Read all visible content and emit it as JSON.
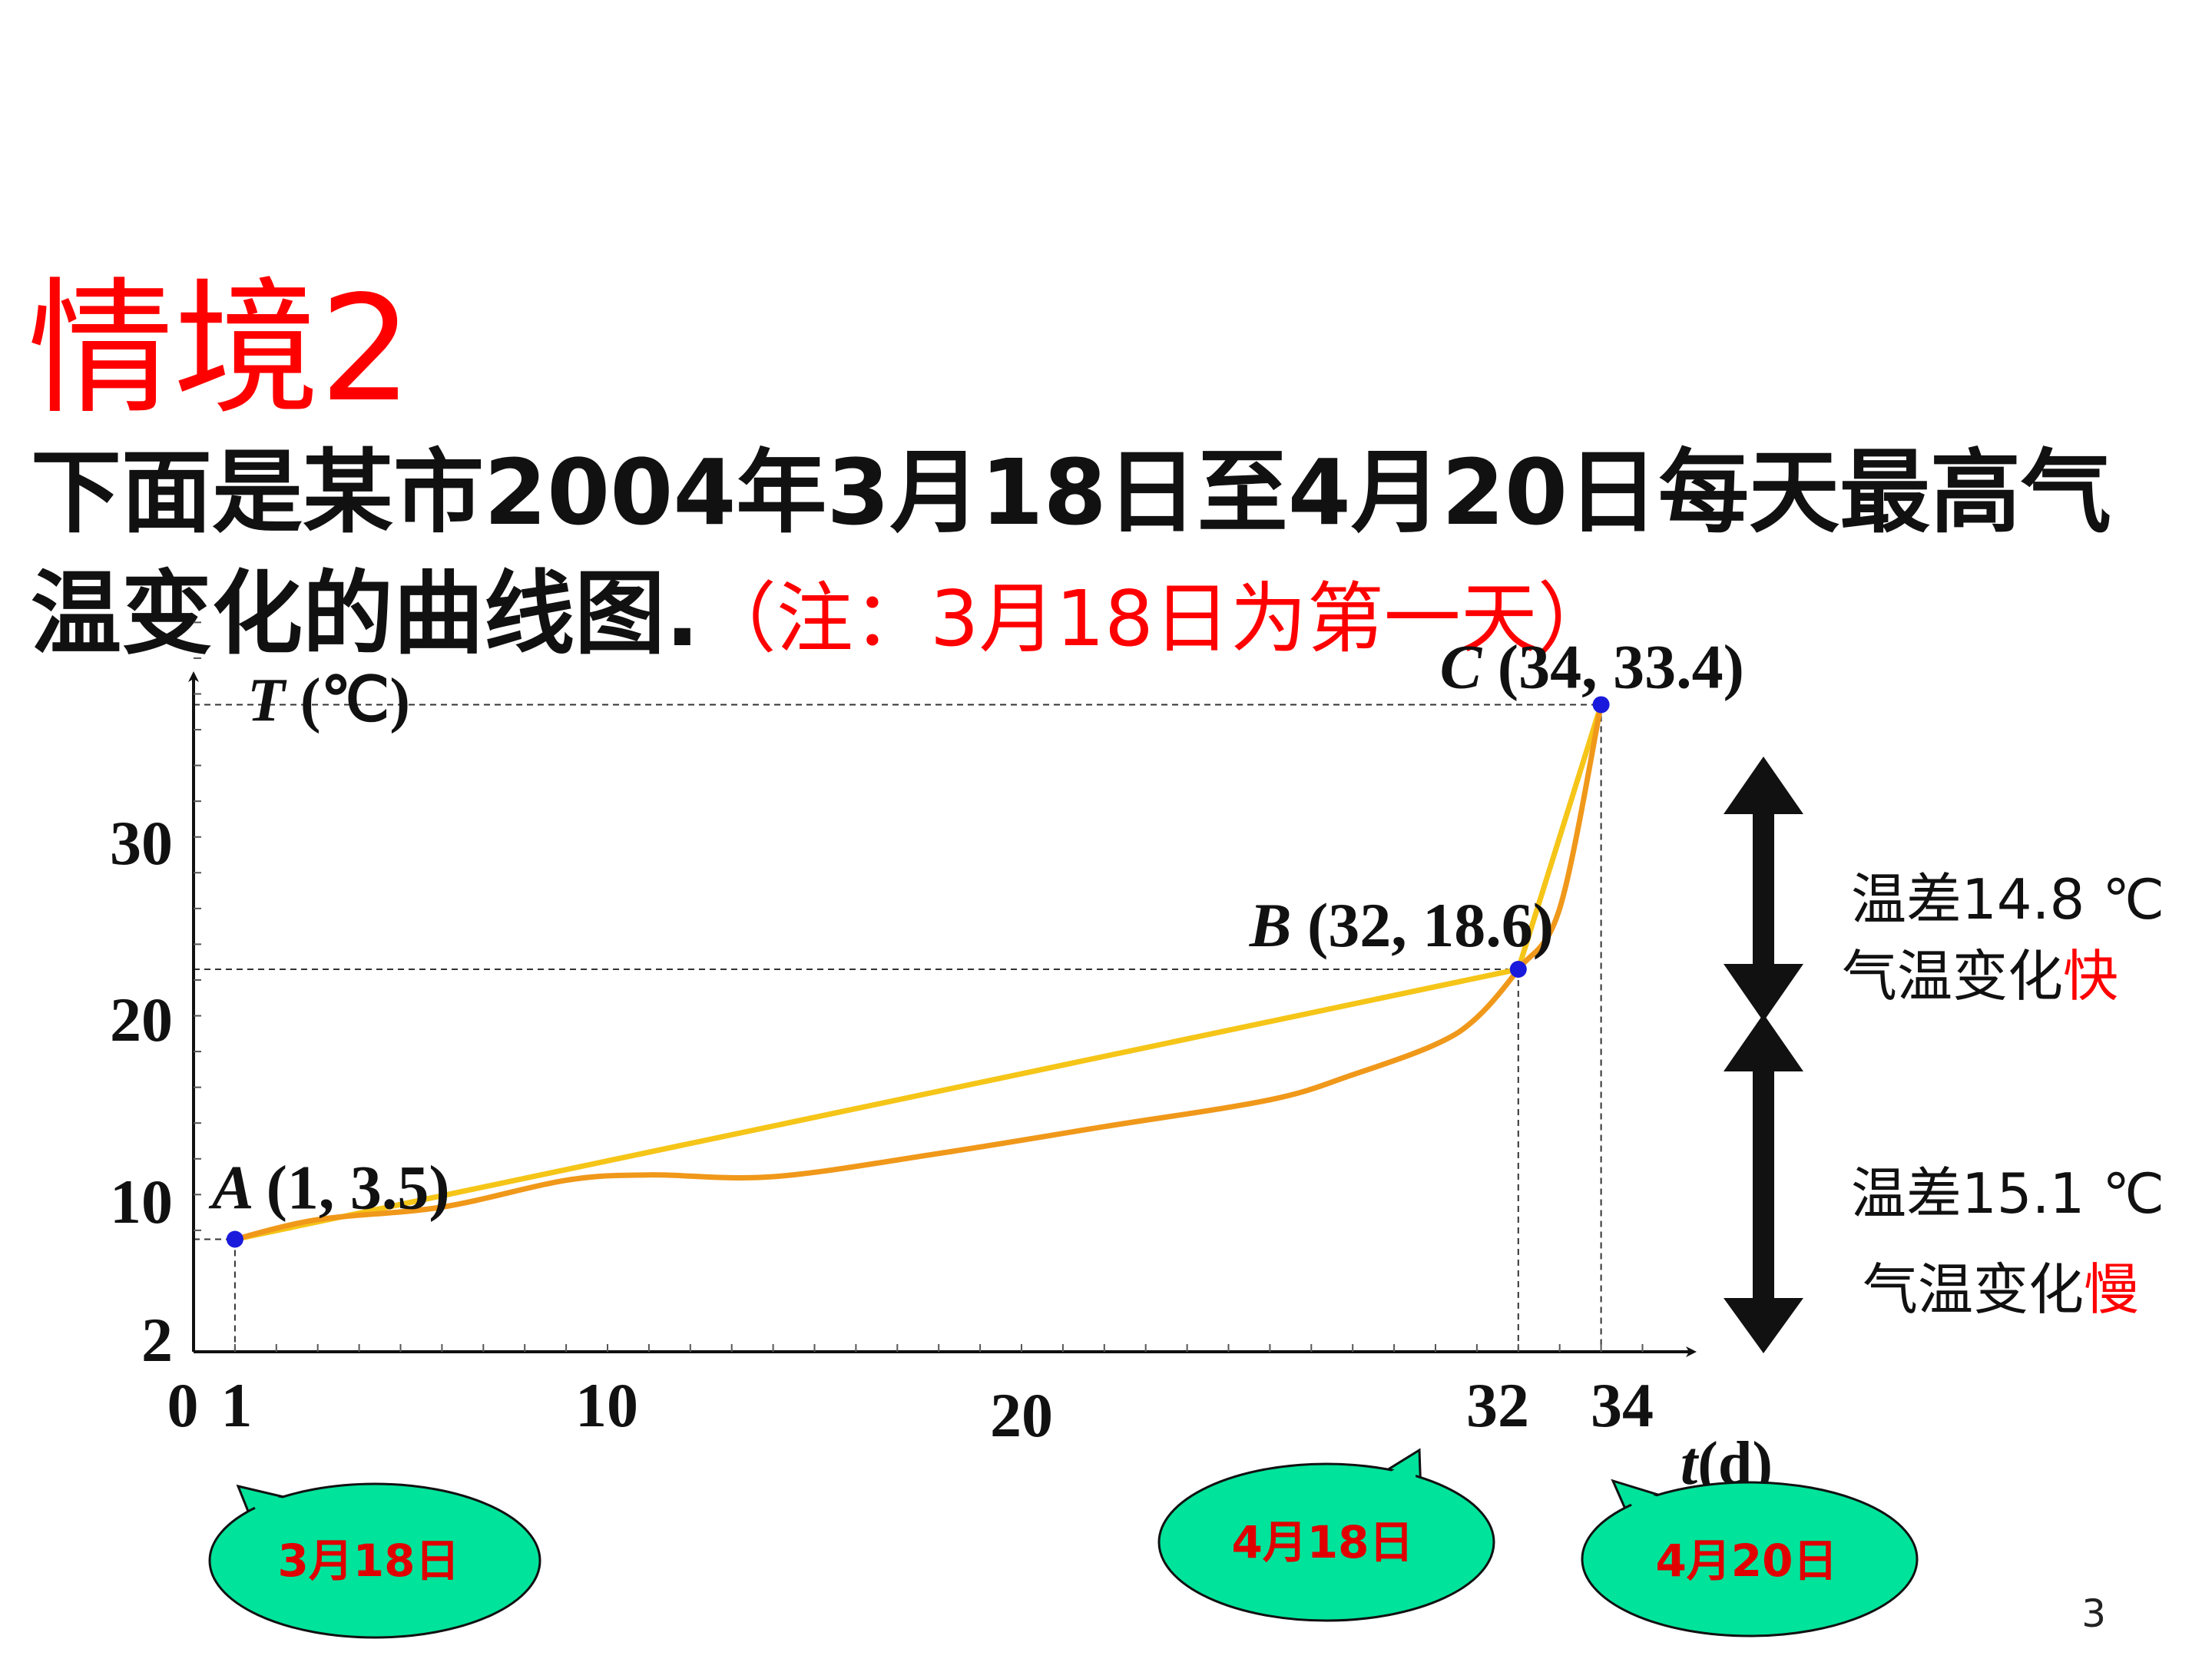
{
  "slide": {
    "title": "情境2",
    "desc_line1": "下面是某市2004年3月18日至4月20日每天最高气",
    "desc_line2": "温变化的曲线图.",
    "note": "（注：3月18日为第一天）",
    "page_number": "3"
  },
  "side": {
    "diff_upper": "温差14.8 ℃",
    "speed_upper_prefix": "气温变化",
    "speed_upper_word": "快",
    "diff_lower": "温差15.1 ℃",
    "speed_lower_prefix": "气温变化",
    "speed_lower_word": "慢"
  },
  "colors": {
    "title": "#ff0000",
    "yellow_line": "#f5c518",
    "orange_curve": "#f0981a",
    "point": "#1a1adc",
    "bubble_fill": "#00e39a",
    "bubble_text": "#e00000",
    "arrow": "#111111"
  },
  "chart_data": {
    "type": "line",
    "x_axis_label_var": "t",
    "x_axis_label_unit": "(d)",
    "y_axis_label_var": "T",
    "y_axis_label_unit": " (℃)",
    "x_ticks": [
      "0",
      "1",
      "10",
      "20",
      "32",
      "34"
    ],
    "x_tick_values": [
      0,
      1,
      10,
      20,
      32,
      34
    ],
    "y_ticks": [
      "2",
      "10",
      "20",
      "30"
    ],
    "y_tick_values": [
      2,
      10,
      20,
      30
    ],
    "points": [
      {
        "label": "A",
        "coord": "(1, 3.5)",
        "x": 1,
        "y": 3.5
      },
      {
        "label": "B",
        "coord": "(32, 18.6)",
        "x": 32,
        "y": 18.6
      },
      {
        "label": "C",
        "coord": "(34, 33.4)",
        "x": 34,
        "y": 33.4
      }
    ],
    "series": [
      {
        "kind": "polyline",
        "x": [
          1,
          32,
          34
        ],
        "y": [
          3.5,
          18.6,
          33.4
        ]
      },
      {
        "kind": "curve",
        "x": [
          1,
          3,
          6,
          9,
          11,
          14,
          18,
          22,
          26,
          28,
          30,
          31,
          32,
          33,
          34
        ],
        "y": [
          3.5,
          4.6,
          5.3,
          6.8,
          7.1,
          7.0,
          8.3,
          9.8,
          11.3,
          12.7,
          14.4,
          15.9,
          18.6,
          22.0,
          33.4
        ]
      }
    ],
    "date_bubbles": [
      {
        "text": "3月18日",
        "x": 1
      },
      {
        "text": "4月18日",
        "x": 32
      },
      {
        "text": "4月20日",
        "x": 34
      }
    ]
  }
}
